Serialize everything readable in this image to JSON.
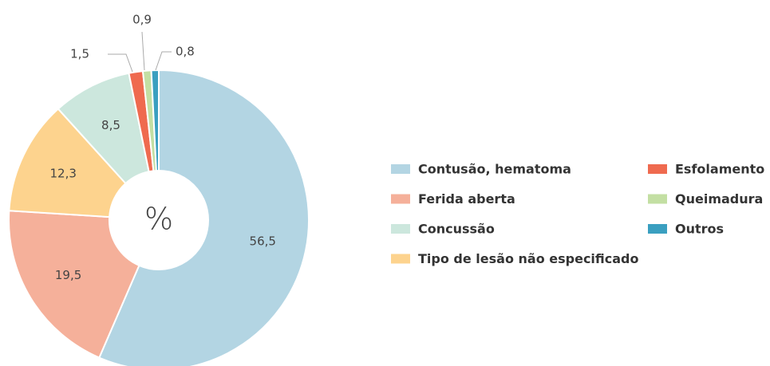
{
  "chart_data": {
    "type": "pie",
    "center_label": "%",
    "categories": [
      "Contusão, hematoma",
      "Ferida aberta",
      "Concussão",
      "Tipo de lesão não especificado",
      "Esfolamento",
      "Queimadura",
      "Outros"
    ],
    "values": [
      56.5,
      19.5,
      8.5,
      12.3,
      1.5,
      0.9,
      0.8
    ],
    "value_labels": [
      "56,5",
      "19,5",
      "8,5",
      "12,3",
      "1,5",
      "0,9",
      "0,8"
    ],
    "colors": [
      "#b3d5e3",
      "#f5b09a",
      "#cce7dd",
      "#fdd38e",
      "#ef6a4f",
      "#c3dfa3",
      "#3a9fc0"
    ]
  }
}
